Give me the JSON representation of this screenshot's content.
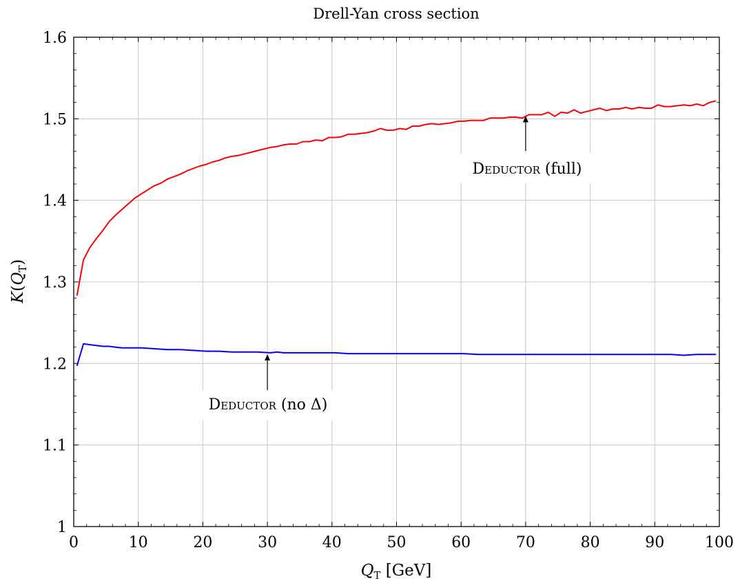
{
  "chart_data": {
    "type": "line",
    "title": "Drell-Yan cross section",
    "xlabel": "Q_T [GeV]",
    "ylabel": "K(Q_T)",
    "xlim": [
      0,
      100
    ],
    "ylim": [
      1,
      1.6
    ],
    "grid": true,
    "xticks": [
      "0",
      "10",
      "20",
      "30",
      "40",
      "50",
      "60",
      "70",
      "80",
      "90",
      "100"
    ],
    "yticks": [
      "1",
      "1.1",
      "1.2",
      "1.3",
      "1.4",
      "1.5",
      "1.6"
    ],
    "series": [
      {
        "color": "#ff0000",
        "x": [
          0.5,
          1.5,
          2.5,
          3.5,
          4.5,
          5.5,
          6.5,
          7.5,
          8.5,
          9.5,
          10.5,
          11.5,
          12.5,
          13.5,
          14.5,
          15.5,
          16.5,
          17.5,
          18.5,
          19.5,
          20.5,
          21.5,
          22.5,
          23.5,
          24.5,
          25.5,
          26.5,
          27.5,
          28.5,
          29.5,
          30.5,
          31.5,
          32.5,
          33.5,
          34.5,
          35.5,
          36.5,
          37.5,
          38.5,
          39.5,
          40.5,
          41.5,
          42.5,
          43.5,
          44.5,
          45.5,
          46.5,
          47.5,
          48.5,
          49.5,
          50.5,
          51.5,
          52.5,
          53.5,
          54.5,
          55.5,
          56.5,
          57.5,
          58.5,
          59.5,
          60.5,
          61.5,
          62.5,
          63.5,
          64.5,
          65.5,
          66.5,
          67.5,
          68.5,
          69.5,
          70.5,
          71.5,
          72.5,
          73.5,
          74.5,
          75.5,
          76.5,
          77.5,
          78.5,
          79.5,
          80.5,
          81.5,
          82.5,
          83.5,
          84.5,
          85.5,
          86.5,
          87.5,
          88.5,
          89.5,
          90.5,
          91.5,
          92.5,
          93.5,
          94.5,
          95.5,
          96.5,
          97.5,
          98.5,
          99.5
        ],
        "y": [
          1.283,
          1.327,
          1.342,
          1.353,
          1.363,
          1.374,
          1.382,
          1.389,
          1.396,
          1.403,
          1.408,
          1.413,
          1.418,
          1.421,
          1.426,
          1.429,
          1.432,
          1.436,
          1.439,
          1.442,
          1.444,
          1.447,
          1.449,
          1.452,
          1.454,
          1.455,
          1.457,
          1.459,
          1.461,
          1.463,
          1.465,
          1.466,
          1.468,
          1.469,
          1.469,
          1.472,
          1.472,
          1.474,
          1.473,
          1.477,
          1.477,
          1.478,
          1.481,
          1.481,
          1.482,
          1.483,
          1.485,
          1.488,
          1.486,
          1.486,
          1.488,
          1.487,
          1.491,
          1.491,
          1.493,
          1.494,
          1.493,
          1.494,
          1.495,
          1.497,
          1.497,
          1.498,
          1.498,
          1.498,
          1.501,
          1.501,
          1.501,
          1.502,
          1.502,
          1.501,
          1.505,
          1.505,
          1.505,
          1.508,
          1.503,
          1.508,
          1.507,
          1.511,
          1.507,
          1.509,
          1.511,
          1.513,
          1.51,
          1.512,
          1.512,
          1.514,
          1.512,
          1.514,
          1.513,
          1.513,
          1.517,
          1.515,
          1.515,
          1.516,
          1.517,
          1.516,
          1.518,
          1.516,
          1.52,
          1.522
        ]
      },
      {
        "color": "#0000ff",
        "x": [
          0.5,
          1.5,
          2.5,
          3.5,
          4.5,
          5.5,
          6.5,
          7.5,
          8.5,
          9.5,
          10.5,
          12.5,
          14.5,
          16.5,
          18.5,
          20.5,
          22.5,
          24.5,
          26.5,
          28.5,
          30.5,
          31.5,
          32.5,
          34.5,
          36.5,
          38.5,
          40.5,
          42.5,
          44.5,
          46.5,
          48.5,
          50.5,
          52.5,
          54.5,
          56.5,
          58.5,
          60.5,
          62.5,
          64.5,
          66.5,
          68.5,
          70.5,
          72.5,
          74.5,
          76.5,
          78.5,
          80.5,
          82.5,
          84.5,
          86.5,
          88.5,
          90.5,
          92.5,
          94.5,
          96.5,
          98.5,
          99.5
        ],
        "y": [
          1.197,
          1.224,
          1.223,
          1.222,
          1.221,
          1.221,
          1.22,
          1.219,
          1.219,
          1.219,
          1.219,
          1.218,
          1.217,
          1.217,
          1.216,
          1.215,
          1.215,
          1.214,
          1.214,
          1.214,
          1.213,
          1.214,
          1.213,
          1.213,
          1.213,
          1.213,
          1.213,
          1.212,
          1.212,
          1.212,
          1.212,
          1.212,
          1.212,
          1.212,
          1.212,
          1.212,
          1.212,
          1.211,
          1.211,
          1.211,
          1.211,
          1.211,
          1.211,
          1.211,
          1.211,
          1.211,
          1.211,
          1.211,
          1.211,
          1.211,
          1.211,
          1.211,
          1.211,
          1.21,
          1.211,
          1.211,
          1.211
        ]
      }
    ],
    "annotations": [
      {
        "text_small_caps": "Deductor",
        "text_rest": " (full)",
        "arrow_to": [
          70,
          1.505
        ]
      },
      {
        "text_small_caps": "Deductor",
        "text_rest": " (no Δ)",
        "arrow_to": [
          30,
          1.213
        ]
      }
    ]
  }
}
